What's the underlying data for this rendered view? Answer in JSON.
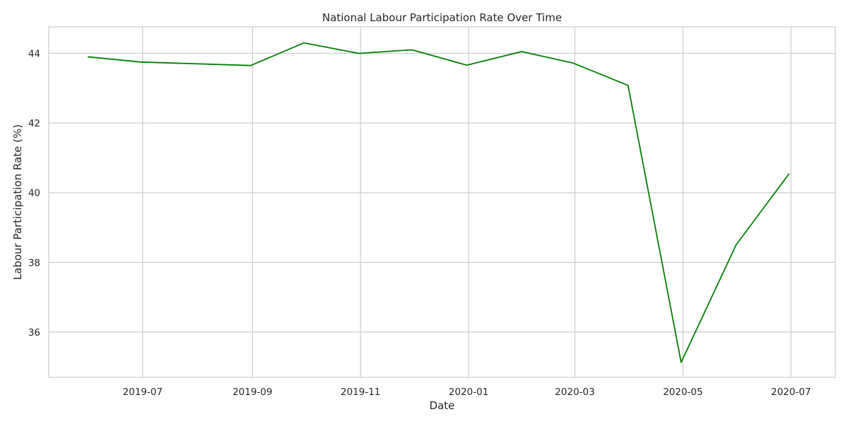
{
  "chart_data": {
    "type": "line",
    "title": "National Labour Participation Rate Over Time",
    "xlabel": "Date",
    "ylabel": "Labour Participation Rate (%)",
    "x": [
      "2019-05-31",
      "2019-06-30",
      "2019-08-31",
      "2019-09-30",
      "2019-10-31",
      "2019-11-30",
      "2019-12-31",
      "2020-01-31",
      "2020-02-29",
      "2020-03-31",
      "2020-04-30",
      "2020-05-31",
      "2020-06-30"
    ],
    "series": [
      {
        "values": [
          43.9,
          43.75,
          43.65,
          44.3,
          44.0,
          44.1,
          43.66,
          44.05,
          43.72,
          43.08,
          35.13,
          38.5,
          40.55
        ],
        "color": "#008000"
      }
    ],
    "x_ticks": [
      "2019-07",
      "2019-09",
      "2019-11",
      "2020-01",
      "2020-03",
      "2020-05",
      "2020-07"
    ],
    "y_ticks": [
      36,
      38,
      40,
      42,
      44
    ],
    "xlim": [
      "2019-05-09",
      "2020-07-26"
    ],
    "ylim": [
      34.7,
      44.76
    ],
    "grid": true,
    "grid_color": "#cccccc",
    "text_color": "#262626"
  }
}
